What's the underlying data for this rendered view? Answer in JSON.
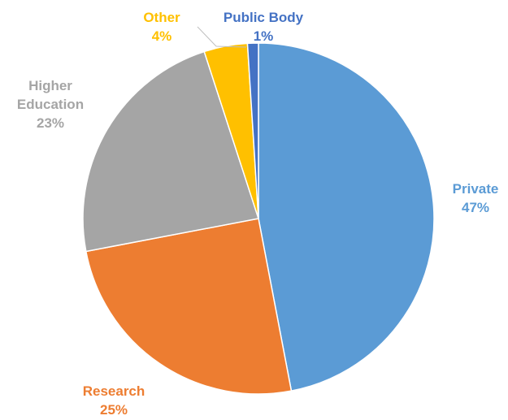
{
  "chart_data": {
    "type": "pie",
    "slices": [
      {
        "name": "Private",
        "value": 47,
        "percent_label": "47%",
        "color": "#5B9BD5"
      },
      {
        "name": "Research",
        "value": 25,
        "percent_label": "25%",
        "color": "#ED7D31"
      },
      {
        "name": "Higher Education",
        "value": 23,
        "percent_label": "23%",
        "color": "#A5A5A5"
      },
      {
        "name": "Other",
        "value": 4,
        "percent_label": "4%",
        "color": "#FFC000"
      },
      {
        "name": "Public Body",
        "value": 1,
        "percent_label": "1%",
        "color": "#4472C4"
      }
    ],
    "legend": "none",
    "data_labels": "outside"
  }
}
